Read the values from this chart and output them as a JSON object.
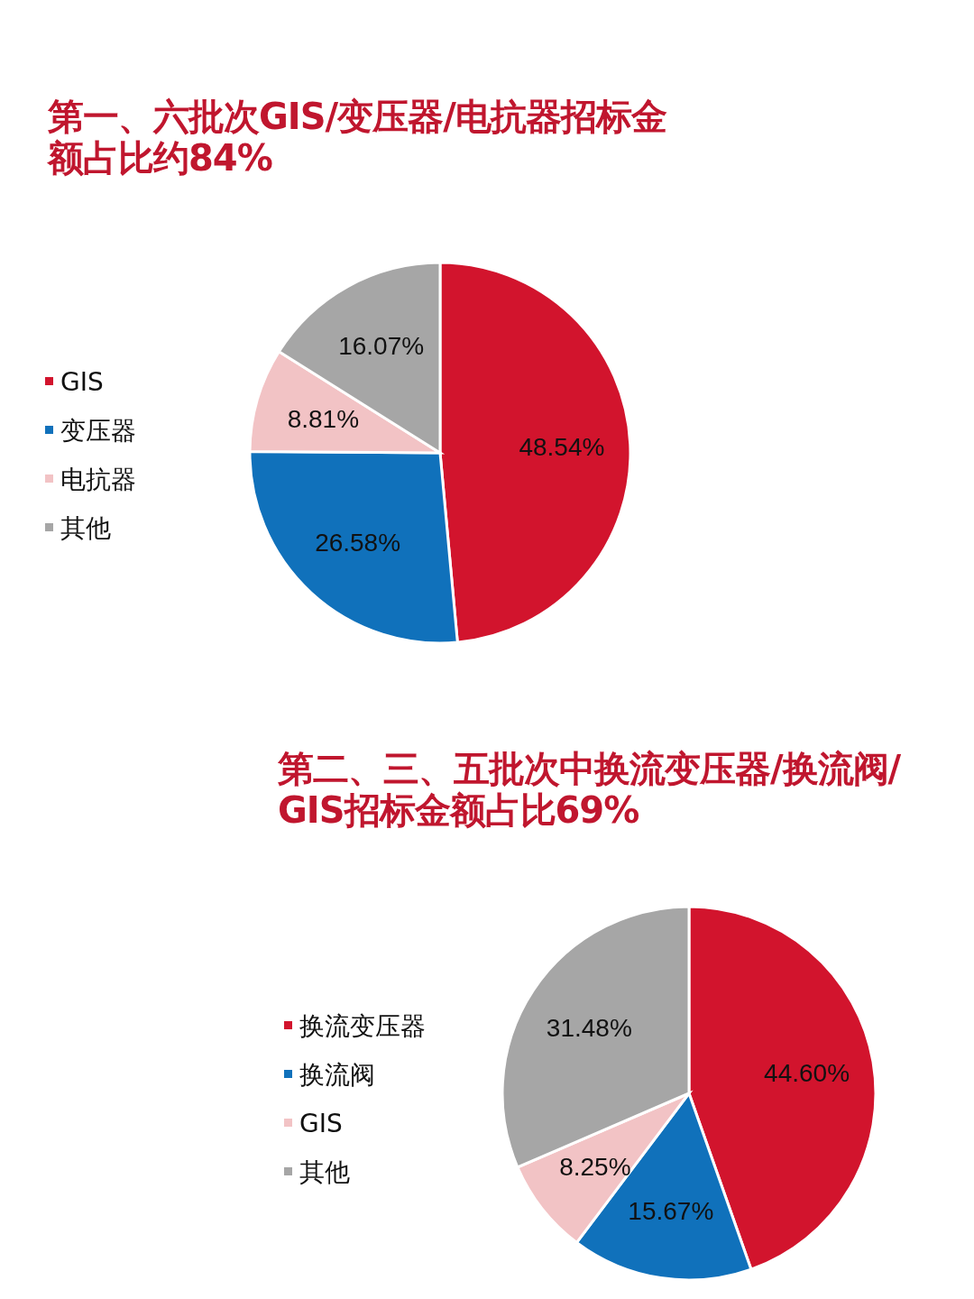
{
  "chart_data": [
    {
      "type": "pie",
      "title": "第一、六批次GIS/变压器/电抗器招标金额占比约84%",
      "categories": [
        "GIS",
        "变压器",
        "电抗器",
        "其他"
      ],
      "values": [
        48.54,
        26.58,
        8.81,
        16.07
      ],
      "colors": [
        "#d2142d",
        "#1071bb",
        "#f2c3c5",
        "#a6a6a6"
      ],
      "value_labels": [
        "48.54%",
        "26.58%",
        "8.81%",
        "16.07%"
      ],
      "legend": "left"
    },
    {
      "type": "pie",
      "title": "第二、三、五批次中换流变压器/换流阀/GIS招标金额占比69%",
      "categories": [
        "换流变压器",
        "换流阀",
        "GIS",
        "其他"
      ],
      "values": [
        44.6,
        15.67,
        8.25,
        31.48
      ],
      "colors": [
        "#d2142d",
        "#1071bb",
        "#f2c3c5",
        "#a6a6a6"
      ],
      "value_labels": [
        "44.60%",
        "15.67%",
        "8.25%",
        "31.48%"
      ],
      "legend": "left"
    }
  ]
}
